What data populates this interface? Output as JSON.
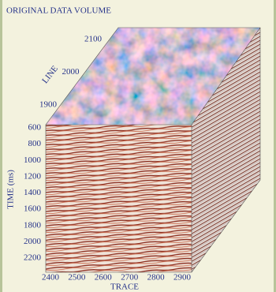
{
  "title": "ORIGINAL DATA VOLUME",
  "line_axis": {
    "label": "LINE",
    "ticks": [
      1900,
      2000,
      2100
    ]
  },
  "time_axis": {
    "label": "TIME (ms)",
    "ticks": [
      600,
      800,
      1000,
      1200,
      1400,
      1600,
      1800,
      2000,
      2200
    ]
  },
  "trace_axis": {
    "label": "TRACE",
    "ticks": [
      2400,
      2500,
      2600,
      2700,
      2800,
      2900
    ]
  }
}
